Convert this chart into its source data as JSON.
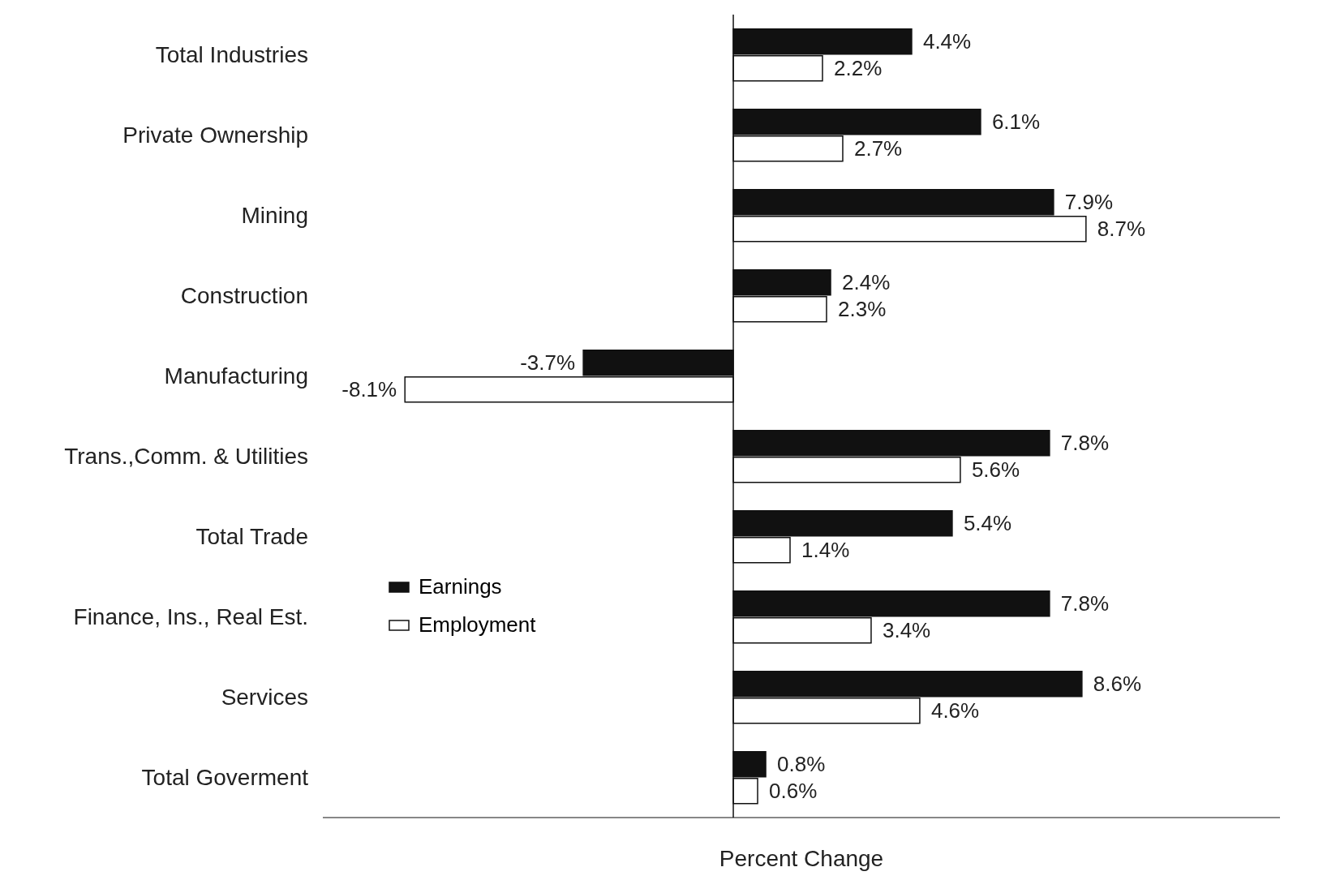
{
  "chart_data": {
    "type": "bar",
    "orientation": "horizontal",
    "xlabel": "Percent Change",
    "categories": [
      "Total Industries",
      "Private Ownership",
      "Mining",
      "Construction",
      "Manufacturing",
      "Trans.,Comm. & Utilities",
      "Total Trade",
      "Finance, Ins., Real Est.",
      "Services",
      "Total Goverment"
    ],
    "series": [
      {
        "name": "Earnings",
        "color": "#111111",
        "values": [
          4.4,
          6.1,
          7.9,
          2.4,
          -3.7,
          7.8,
          5.4,
          7.8,
          8.6,
          0.8
        ],
        "value_labels": [
          "4.4%",
          "6.1%",
          "7.9%",
          "2.4%",
          "-3.7%",
          "7.8%",
          "5.4%",
          "7.8%",
          "8.6%",
          "0.8%"
        ]
      },
      {
        "name": "Employment",
        "color": "#ffffff",
        "values": [
          2.2,
          2.7,
          8.7,
          2.3,
          -8.1,
          5.6,
          1.4,
          3.4,
          4.6,
          0.6
        ],
        "value_labels": [
          "2.2%",
          "2.7%",
          "8.7%",
          "2.3%",
          "-8.1%",
          "5.6%",
          "1.4%",
          "3.4%",
          "4.6%",
          "0.6%"
        ]
      }
    ],
    "tick_labels": "y",
    "legend": "left",
    "grid": false
  }
}
